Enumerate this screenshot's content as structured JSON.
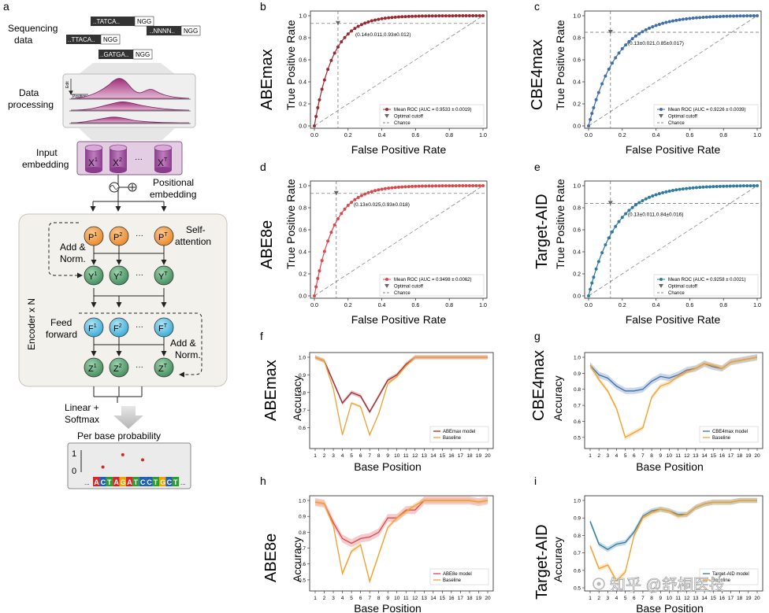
{
  "panel_letters": [
    "a",
    "b",
    "c",
    "d",
    "e",
    "f",
    "g",
    "h",
    "i"
  ],
  "schematic": {
    "sequencing_label": [
      "Sequencing",
      "data"
    ],
    "reads": [
      {
        "seq": "..TATCA..",
        "pam": "NGG"
      },
      {
        "seq": "..NNNN..",
        "pam": "NGG"
      },
      {
        "seq": "..TTACA..",
        "pam": "NGG"
      },
      {
        "seq": "..GATGA..",
        "pam": "NGG"
      }
    ],
    "data_processing_label": [
      "Data",
      "processing"
    ],
    "plot_axis_y": "Edit",
    "plot_axis_x": "Position",
    "input_embedding_label": [
      "Input",
      "embedding"
    ],
    "x_tokens": [
      {
        "base": "X",
        "sup": "1"
      },
      {
        "base": "X",
        "sup": "2"
      },
      {
        "base": "X",
        "sup": "T"
      }
    ],
    "ellipsis": "···",
    "positional_label": [
      "Positional",
      "embedding"
    ],
    "encoder_label": "Encoder x N",
    "p_tokens": [
      {
        "base": "P",
        "sup": "1"
      },
      {
        "base": "P",
        "sup": "2"
      },
      {
        "base": "P",
        "sup": "T"
      }
    ],
    "y_tokens": [
      {
        "base": "Y",
        "sup": "1"
      },
      {
        "base": "Y",
        "sup": "2"
      },
      {
        "base": "Y",
        "sup": "T"
      }
    ],
    "f_tokens": [
      {
        "base": "F",
        "sup": "1"
      },
      {
        "base": "F",
        "sup": "2"
      },
      {
        "base": "F",
        "sup": "T"
      }
    ],
    "z_tokens": [
      {
        "base": "Z",
        "sup": "1"
      },
      {
        "base": "Z",
        "sup": "2"
      },
      {
        "base": "Z",
        "sup": "T"
      }
    ],
    "self_attention_label": [
      "Self-",
      "attention"
    ],
    "add_norm_label": [
      "Add &",
      "Norm."
    ],
    "feed_forward_label": [
      "Feed",
      "forward"
    ],
    "linear_label": [
      "Linear +",
      "Softmax"
    ],
    "per_base_label": "Per base probability",
    "prob_axis_1": "1",
    "prob_axis_0": "0",
    "output_bases": [
      "A",
      "C",
      "T",
      "A",
      "G",
      "A",
      "T",
      "C",
      "C",
      "T",
      "G",
      "C",
      "T"
    ],
    "output_prefix": "...",
    "output_suffix": "...",
    "base_colors": {
      "A": "#d62728",
      "C": "#1f5fb4",
      "G": "#f0a500",
      "T": "#2ca02c"
    },
    "prob_points": [
      {
        "base_index": 1,
        "p": 0.25
      },
      {
        "base_index": 4,
        "p": 0.85
      },
      {
        "base_index": 7,
        "p": 0.6
      }
    ]
  },
  "watermark": "知乎 @舒桐医技",
  "colors": {
    "abemax": "#9a2a2f",
    "cbe4max": "#3f6ea8",
    "abe8e": "#d9484c",
    "target_aid": "#2e7aa0",
    "baseline": "#f0a030",
    "chance": "#888888"
  },
  "chart_data": [
    {
      "panel": "b",
      "type": "line",
      "title_vertical": "ABEmax",
      "xlabel": "False Positive Rate",
      "ylabel": "True Positive Rate",
      "xlim": [
        0,
        1
      ],
      "ylim": [
        0,
        1
      ],
      "x_ticks": [
        "0.0",
        "0.2",
        "0.4",
        "0.6",
        "0.8",
        "1.0"
      ],
      "y_ticks": [
        "0.0",
        "0.2",
        "0.4",
        "0.6",
        "0.8",
        "1.0"
      ],
      "cutoff": {
        "x": 0.14,
        "y": 0.93,
        "label": "(0.14±0.011,0.93±0.012)"
      },
      "curve_k": 9.0,
      "legend": [
        "Mean ROC (AUC = 0.9533 ± 0.0019)",
        "Optimal cutoff",
        "Chance"
      ],
      "legend_placement": "bottom-right"
    },
    {
      "panel": "c",
      "type": "line",
      "title_vertical": "CBE4max",
      "xlabel": "False Positive Rate",
      "ylabel": "True Positive Rate",
      "xlim": [
        0,
        1
      ],
      "ylim": [
        0,
        1
      ],
      "x_ticks": [
        "0.0",
        "0.2",
        "0.4",
        "0.6",
        "0.8",
        "1.0"
      ],
      "y_ticks": [
        "0.0",
        "0.2",
        "0.4",
        "0.6",
        "0.8",
        "1.0"
      ],
      "cutoff": {
        "x": 0.13,
        "y": 0.85,
        "label": "(0.13±0.021,0.85±0.017)"
      },
      "curve_k": 6.0,
      "legend": [
        "Mean ROC (AUC = 0.9226 ± 0.0039)",
        "Optimal cutoff",
        "Chance"
      ],
      "legend_placement": "bottom-right"
    },
    {
      "panel": "d",
      "type": "line",
      "title_vertical": "ABE8e",
      "xlabel": "False Positive Rate",
      "ylabel": "True Positive Rate",
      "xlim": [
        0,
        1
      ],
      "ylim": [
        0,
        1
      ],
      "x_ticks": [
        "0.0",
        "0.2",
        "0.4",
        "0.6",
        "0.8",
        "1.0"
      ],
      "y_ticks": [
        "0.0",
        "0.2",
        "0.4",
        "0.6",
        "0.8",
        "1.0"
      ],
      "cutoff": {
        "x": 0.13,
        "y": 0.93,
        "label": "(0.13±0.025,0.93±0.018)"
      },
      "curve_k": 8.6,
      "legend": [
        "Mean ROC (AUC = 0.9498 ± 0.0062)",
        "Optimal cutoff",
        "Chance"
      ],
      "legend_placement": "bottom-right"
    },
    {
      "panel": "e",
      "type": "line",
      "title_vertical": "Target-AID",
      "xlabel": "False Positive Rate",
      "ylabel": "True Positive Rate",
      "xlim": [
        0,
        1
      ],
      "ylim": [
        0,
        1
      ],
      "x_ticks": [
        "0.0",
        "0.2",
        "0.4",
        "0.6",
        "0.8",
        "1.0"
      ],
      "y_ticks": [
        "0.0",
        "0.2",
        "0.4",
        "0.6",
        "0.8",
        "1.0"
      ],
      "cutoff": {
        "x": 0.13,
        "y": 0.84,
        "label": "(0.13±0.011,0.84±0.016)"
      },
      "curve_k": 6.2,
      "legend": [
        "Mean ROC (AUC = 0.9258 ± 0.0021)",
        "Optimal cutoff",
        "Chance"
      ],
      "legend_placement": "bottom-right"
    },
    {
      "panel": "f",
      "type": "line",
      "title_vertical": "ABEmax",
      "xlabel": "Base Position",
      "ylabel": "Accuracy",
      "ylim": [
        0.5,
        1.0
      ],
      "y_ticks": [
        "0.6",
        "0.7",
        "0.8",
        "0.9",
        "1.0"
      ],
      "x": [
        1,
        2,
        3,
        4,
        5,
        6,
        7,
        8,
        9,
        10,
        11,
        12,
        13,
        14,
        15,
        16,
        17,
        18,
        19,
        20
      ],
      "series": [
        {
          "name": "ABEmax model",
          "values": [
            1.0,
            0.98,
            0.86,
            0.74,
            0.8,
            0.78,
            0.69,
            0.78,
            0.87,
            0.9,
            0.96,
            1.0,
            1.0,
            1.0,
            1.0,
            1.0,
            1.0,
            1.0,
            1.0,
            1.0
          ],
          "band": 0.012
        },
        {
          "name": "Baseline",
          "values": [
            1.0,
            0.98,
            0.82,
            0.56,
            0.74,
            0.72,
            0.56,
            0.68,
            0.85,
            0.89,
            0.95,
            1.0,
            1.0,
            1.0,
            1.0,
            1.0,
            1.0,
            1.0,
            1.0,
            1.0
          ],
          "band": 0.008
        }
      ],
      "legend_placement": "bottom-right"
    },
    {
      "panel": "g",
      "type": "line",
      "title_vertical": "CBE4max",
      "xlabel": "Base Position",
      "ylabel": "Accuracy",
      "ylim": [
        0.45,
        1.0
      ],
      "y_ticks": [
        "0.5",
        "0.6",
        "0.7",
        "0.8",
        "0.9",
        "1.0"
      ],
      "x": [
        1,
        2,
        3,
        4,
        5,
        6,
        7,
        8,
        9,
        10,
        11,
        12,
        13,
        14,
        15,
        16,
        17,
        18,
        19,
        20
      ],
      "series": [
        {
          "name": "CBE4max model",
          "values": [
            0.95,
            0.89,
            0.87,
            0.82,
            0.79,
            0.79,
            0.8,
            0.85,
            0.88,
            0.87,
            0.89,
            0.92,
            0.93,
            0.96,
            0.94,
            0.93,
            0.97,
            0.98,
            0.99,
            1.0
          ],
          "band": 0.02
        },
        {
          "name": "Baseline",
          "values": [
            0.95,
            0.86,
            0.79,
            0.68,
            0.5,
            0.53,
            0.56,
            0.75,
            0.82,
            0.84,
            0.88,
            0.91,
            0.93,
            0.96,
            0.95,
            0.93,
            0.97,
            0.98,
            0.99,
            1.0
          ],
          "band": 0.015
        }
      ],
      "legend_placement": "bottom-right"
    },
    {
      "panel": "h",
      "type": "line",
      "title_vertical": "ABE8e",
      "xlabel": "Base Position",
      "ylabel": "Accuracy",
      "ylim": [
        0.45,
        1.0
      ],
      "y_ticks": [
        "0.5",
        "0.6",
        "0.7",
        "0.8",
        "0.9",
        "1.0"
      ],
      "x": [
        1,
        2,
        3,
        4,
        5,
        6,
        7,
        8,
        9,
        10,
        11,
        12,
        13,
        14,
        15,
        16,
        17,
        18,
        19,
        20
      ],
      "series": [
        {
          "name": "ABE8e model",
          "values": [
            0.99,
            0.98,
            0.86,
            0.76,
            0.73,
            0.76,
            0.77,
            0.8,
            0.89,
            0.89,
            0.94,
            0.94,
            1.0,
            1.0,
            1.0,
            1.0,
            1.0,
            1.0,
            0.99,
            1.0
          ],
          "band": 0.025
        },
        {
          "name": "Baseline",
          "values": [
            0.99,
            0.98,
            0.84,
            0.54,
            0.68,
            0.72,
            0.49,
            0.66,
            0.83,
            0.89,
            0.93,
            0.97,
            1.0,
            1.0,
            1.0,
            1.0,
            1.0,
            1.0,
            0.99,
            1.0
          ],
          "band": 0.015
        }
      ],
      "legend_placement": "bottom-right"
    },
    {
      "panel": "i",
      "type": "line",
      "title_vertical": "Target-AID",
      "xlabel": "Base Position",
      "ylabel": "Accuracy",
      "ylim": [
        0.5,
        1.0
      ],
      "y_ticks": [
        "0.5",
        "0.6",
        "0.7",
        "0.8",
        "0.9",
        "1.0"
      ],
      "x": [
        1,
        2,
        3,
        4,
        5,
        6,
        7,
        8,
        9,
        10,
        11,
        12,
        13,
        14,
        15,
        16,
        17,
        18,
        19,
        20
      ],
      "series": [
        {
          "name": "Target-AID model",
          "values": [
            0.88,
            0.75,
            0.72,
            0.75,
            0.76,
            0.82,
            0.91,
            0.94,
            0.95,
            0.94,
            0.92,
            0.92,
            0.96,
            0.98,
            0.99,
            0.99,
            0.99,
            1.0,
            1.0,
            1.0
          ],
          "band": 0.015
        },
        {
          "name": "Baseline",
          "values": [
            0.74,
            0.61,
            0.63,
            0.54,
            0.59,
            0.8,
            0.9,
            0.93,
            0.95,
            0.94,
            0.91,
            0.92,
            0.96,
            0.98,
            0.99,
            0.99,
            0.99,
            1.0,
            1.0,
            1.0
          ],
          "band": 0.015
        }
      ],
      "legend_placement": "bottom-right"
    }
  ]
}
